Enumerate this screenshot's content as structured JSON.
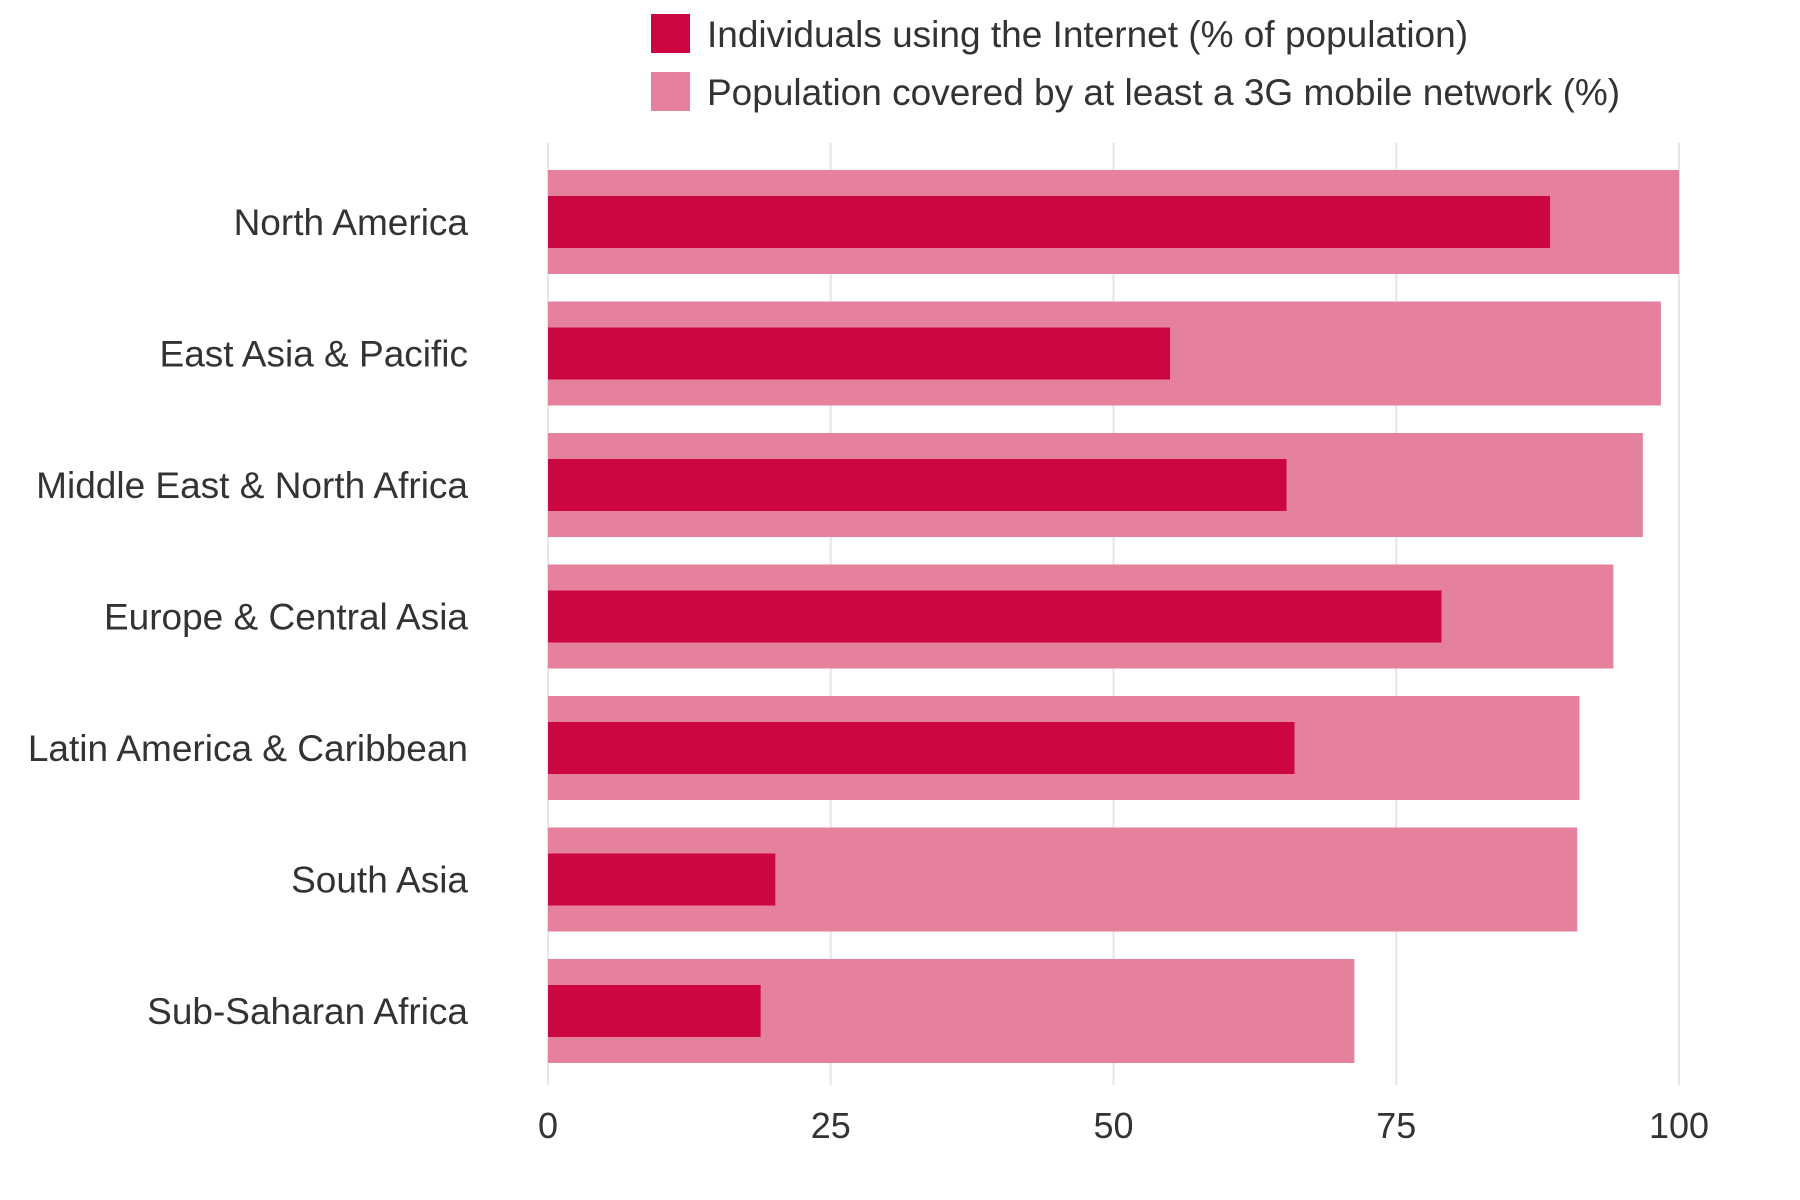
{
  "chart_data": {
    "type": "bar",
    "orientation": "horizontal",
    "categories": [
      "North America",
      "East Asia & Pacific",
      "Middle East & North Africa",
      "Europe & Central Asia",
      "Latin America & Caribbean",
      "South Asia",
      "Sub-Saharan Africa"
    ],
    "series": [
      {
        "name": "Population covered by at least a 3G mobile network (%)",
        "color": "#e5819c",
        "values": [
          100,
          98.4,
          96.8,
          94.2,
          91.2,
          91.0,
          71.3
        ]
      },
      {
        "name": "Individuals using the Internet (% of population)",
        "color": "#cc0641",
        "values": [
          88.6,
          55.0,
          65.3,
          79.0,
          66.0,
          20.1,
          18.8
        ]
      }
    ],
    "x_ticks": [
      "0",
      "25",
      "50",
      "75",
      "100"
    ],
    "xlim": [
      0,
      100
    ],
    "grid": "vertical",
    "legend_position": "top"
  }
}
